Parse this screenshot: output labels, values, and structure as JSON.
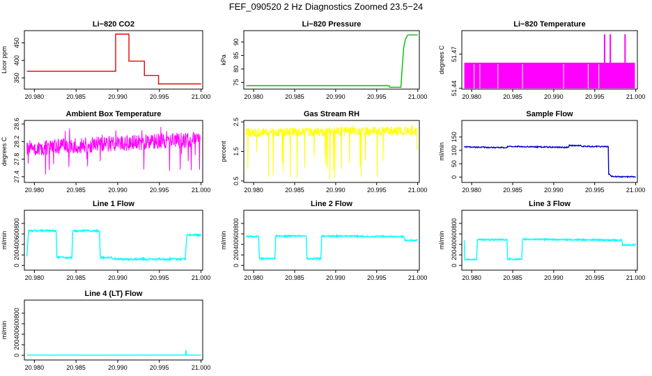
{
  "figure": {
    "title": "FEF_090520  2 Hz Diagnostics Zoomed 23.5−24"
  },
  "chart_data": [
    {
      "type": "line",
      "title": "Li−820 CO2",
      "ylabel": "Licor ppm",
      "xlim": [
        20.9788,
        21.0002
      ],
      "ylim": [
        318,
        485
      ],
      "x_ticks": [
        20.98,
        20.985,
        20.99,
        20.995,
        21.0
      ],
      "x_tick_labels": [
        "20.980",
        "20.985",
        "20.990",
        "20.995",
        "21.000"
      ],
      "y_ticks": [
        350,
        400,
        450
      ],
      "y_tick_labels": [
        "350",
        "400",
        "450"
      ],
      "color": "#ee0000",
      "series": [
        {
          "x": [
            20.9791,
            20.98975,
            20.98975,
            20.99135,
            20.99135,
            20.9932,
            20.9932,
            20.9949,
            20.9949,
            20.9982,
            20.9982,
            21.0
          ],
          "y": [
            369,
            369,
            475,
            475,
            398,
            398,
            357,
            357,
            333,
            333,
            333,
            333
          ]
        }
      ]
    },
    {
      "type": "line",
      "title": "Li−820 Pressure",
      "ylabel": "kPa",
      "xlim": [
        20.9788,
        21.0002
      ],
      "ylim": [
        72.5,
        94.2
      ],
      "x_ticks": [
        20.98,
        20.985,
        20.99,
        20.995,
        21.0
      ],
      "x_tick_labels": [
        "20.980",
        "20.985",
        "20.990",
        "20.995",
        "21.000"
      ],
      "y_ticks": [
        75,
        80,
        85,
        90
      ],
      "y_tick_labels": [
        "75",
        "80",
        "85",
        "90"
      ],
      "color": "#00bb00",
      "series": [
        {
          "x": [
            20.9791,
            20.9965,
            20.9966,
            20.99795,
            20.9981,
            20.9983,
            20.9985,
            20.9988,
            21.0
          ],
          "y": [
            73.8,
            73.8,
            73.2,
            73.2,
            80,
            88,
            91,
            92.6,
            92.6
          ]
        }
      ]
    },
    {
      "type": "bar",
      "title": "Li−820 Temperature",
      "ylabel": "degrees C",
      "xlim": [
        20.9788,
        21.0002
      ],
      "ylim": [
        51.4393,
        51.4907
      ],
      "x_ticks": [
        20.98,
        20.985,
        20.99,
        20.995,
        21.0
      ],
      "x_tick_labels": [
        "20.980",
        "20.985",
        "20.990",
        "20.995",
        "21.000"
      ],
      "y_ticks": [
        51.44,
        51.47
      ],
      "y_tick_labels": [
        "51.44",
        "51.47"
      ],
      "color": "#ff00ff",
      "level_high": 51.4625,
      "level_low": 51.44,
      "spikes_x": [
        20.9962,
        20.9969,
        20.9987
      ],
      "spike_y": 51.4875,
      "gaps_x": [
        20.9803,
        20.981,
        20.9832,
        20.9862,
        20.9912,
        20.9942,
        20.9955
      ]
    },
    {
      "type": "line",
      "title": "Ambient Box Temperature",
      "ylabel": "degrees C",
      "xlim": [
        20.9788,
        21.0002
      ],
      "ylim": [
        27.27,
        28.68
      ],
      "x_ticks": [
        20.98,
        20.985,
        20.99,
        20.995,
        21.0
      ],
      "x_tick_labels": [
        "20.980",
        "20.985",
        "20.990",
        "20.995",
        "21.000"
      ],
      "y_ticks": [
        27.4,
        27.8,
        28.2,
        28.6
      ],
      "y_tick_labels": [
        "27.4",
        "27.8",
        "28.2",
        "28.6"
      ],
      "color": "#ff00ff",
      "noise": {
        "x_start": 20.9791,
        "x_end": 20.9999,
        "center_start": 28.05,
        "center_end": 28.25,
        "amplitude": 0.18,
        "min": 27.45,
        "max": 28.6
      }
    },
    {
      "type": "line",
      "title": "Gas Stream RH",
      "ylabel": "percent",
      "xlim": [
        20.9788,
        21.0002
      ],
      "ylim": [
        0.45,
        2.55
      ],
      "x_ticks": [
        20.98,
        20.985,
        20.99,
        20.995,
        21.0
      ],
      "x_tick_labels": [
        "20.980",
        "20.985",
        "20.990",
        "20.995",
        "21.000"
      ],
      "y_ticks": [
        0.5,
        1.5,
        2.5
      ],
      "y_tick_labels": [
        "0.5",
        "1.5",
        "2.5"
      ],
      "color": "#ffff00",
      "noise": {
        "x_start": 20.9791,
        "x_end": 20.9999,
        "center_start": 2.15,
        "center_end": 2.2,
        "amplitude": 0.16,
        "min": 0.55,
        "max": 2.45
      },
      "dips": [
        [
          20.9793,
          0.9
        ],
        [
          20.9824,
          0.7
        ],
        [
          20.9835,
          1.1
        ],
        [
          20.9853,
          0.6
        ],
        [
          20.9862,
          0.95
        ],
        [
          20.9888,
          1.0
        ],
        [
          20.9893,
          0.55
        ],
        [
          20.9899,
          0.6
        ],
        [
          20.9907,
          0.9
        ],
        [
          20.9917,
          1.1
        ],
        [
          20.9936,
          1.2
        ],
        [
          20.9999,
          1.55
        ]
      ]
    },
    {
      "type": "line",
      "title": "Sample Flow",
      "ylabel": "ml/min",
      "xlim": [
        20.9788,
        21.0002
      ],
      "ylim": [
        -20,
        212
      ],
      "x_ticks": [
        20.98,
        20.985,
        20.99,
        20.995,
        21.0
      ],
      "x_tick_labels": [
        "20.980",
        "20.985",
        "20.990",
        "20.995",
        "21.000"
      ],
      "y_ticks": [
        0,
        50,
        100,
        150
      ],
      "y_tick_labels": [
        "0",
        "50",
        "100",
        "150"
      ],
      "color": "#0000cc",
      "series": [
        {
          "x": [
            20.9791,
            20.9843,
            20.9844,
            20.9918,
            20.9919,
            20.9933,
            20.9934,
            20.99665,
            20.9967,
            20.9971,
            21.0
          ],
          "y": [
            113,
            110,
            115,
            111,
            118,
            118,
            115,
            114,
            12,
            2,
            1
          ]
        }
      ],
      "jitter": 2
    },
    {
      "type": "line",
      "title": "Line 1 Flow",
      "ylabel": "ml/min",
      "xlim": [
        20.9788,
        21.0002
      ],
      "ylim": [
        -90,
        1050
      ],
      "x_ticks": [
        20.98,
        20.985,
        20.99,
        20.995,
        21.0
      ],
      "x_tick_labels": [
        "20.980",
        "20.985",
        "20.990",
        "20.995",
        "21.000"
      ],
      "y_ticks": [
        0,
        200,
        400,
        600,
        800
      ],
      "y_tick_labels": [
        "0",
        "200",
        "400",
        "600",
        "800"
      ],
      "color": "#00ffff",
      "series": [
        {
          "x": [
            20.9791,
            20.9793,
            20.9826,
            20.9827,
            20.9845,
            20.9846,
            20.9878,
            20.9879,
            20.9893,
            20.9894,
            20.9981,
            20.9983,
            21.0
          ],
          "y": [
            190,
            660,
            660,
            150,
            150,
            660,
            660,
            150,
            150,
            120,
            120,
            580,
            580
          ]
        }
      ],
      "jitter": 18
    },
    {
      "type": "line",
      "title": "Line 2 Flow",
      "ylabel": "ml/min",
      "xlim": [
        20.9788,
        21.0002
      ],
      "ylim": [
        -90,
        1050
      ],
      "x_ticks": [
        20.98,
        20.985,
        20.99,
        20.995,
        21.0
      ],
      "x_tick_labels": [
        "20.980",
        "20.985",
        "20.990",
        "20.995",
        "21.000"
      ],
      "y_ticks": [
        0,
        200,
        400,
        600,
        800
      ],
      "y_tick_labels": [
        "0",
        "200",
        "400",
        "600",
        "800"
      ],
      "color": "#00ffff",
      "series": [
        {
          "x": [
            20.9791,
            20.9806,
            20.9807,
            20.9826,
            20.9827,
            20.9864,
            20.9865,
            20.9882,
            20.9883,
            20.9983,
            20.9984,
            21.0
          ],
          "y": [
            550,
            550,
            130,
            130,
            560,
            560,
            130,
            130,
            560,
            550,
            480,
            480
          ]
        }
      ],
      "jitter": 15
    },
    {
      "type": "line",
      "title": "Line 3 Flow",
      "ylabel": "ml/min",
      "xlim": [
        20.9788,
        21.0002
      ],
      "ylim": [
        -90,
        1050
      ],
      "x_ticks": [
        20.98,
        20.985,
        20.99,
        20.995,
        21.0
      ],
      "x_tick_labels": [
        "20.980",
        "20.985",
        "20.990",
        "20.995",
        "21.000"
      ],
      "y_ticks": [
        0,
        200,
        400,
        600,
        800
      ],
      "y_tick_labels": [
        "0",
        "200",
        "400",
        "600",
        "800"
      ],
      "color": "#00ffff",
      "series": [
        {
          "x": [
            20.9791,
            20.97915,
            20.9792,
            20.9806,
            20.9807,
            20.9843,
            20.9844,
            20.9861,
            20.9862,
            20.9983,
            20.9984,
            21.0
          ],
          "y": [
            480,
            110,
            110,
            110,
            490,
            490,
            120,
            120,
            500,
            480,
            390,
            390
          ]
        }
      ],
      "jitter": 15
    },
    {
      "type": "line",
      "title": "Line 4 (LT) Flow",
      "ylabel": "ml/min",
      "xlim": [
        20.9788,
        21.0002
      ],
      "ylim": [
        -90,
        1050
      ],
      "x_ticks": [
        20.98,
        20.985,
        20.99,
        20.995,
        21.0
      ],
      "x_tick_labels": [
        "20.980",
        "20.985",
        "20.990",
        "20.995",
        "21.000"
      ],
      "y_ticks": [
        0,
        200,
        400,
        600,
        800
      ],
      "y_tick_labels": [
        "0",
        "200",
        "400",
        "600",
        "800"
      ],
      "color": "#00ffff",
      "series": [
        {
          "x": [
            20.9791,
            20.99815,
            20.9982,
            20.99825,
            20.9983,
            21.0
          ],
          "y": [
            2,
            2,
            100,
            15,
            2,
            2
          ]
        }
      ],
      "jitter": 2
    }
  ]
}
